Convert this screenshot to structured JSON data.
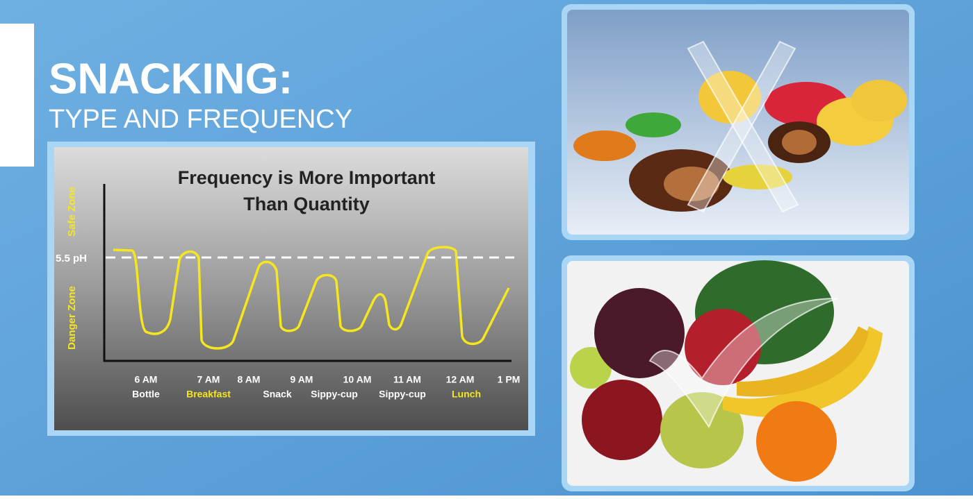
{
  "slide": {
    "title": "SNACKING:",
    "subtitle": "TYPE AND FREQUENCY"
  },
  "chart": {
    "title_lines": [
      "Frequency is More Important",
      "Than Quantity"
    ],
    "threshold_label": "5.5 pH",
    "zone_labels": [
      "Safe Zone",
      "Danger Zone"
    ],
    "x_labels": [
      "6 AM",
      "7 AM",
      "8 AM",
      "9 AM",
      "10 AM",
      "11 AM",
      "12 AM",
      "1 PM"
    ],
    "events": [
      {
        "label": "Bottle",
        "color": "#ffffff"
      },
      {
        "label": "Breakfast",
        "color": "#f5e61e"
      },
      {
        "label": "Snack",
        "color": "#ffffff"
      },
      {
        "label": "Sippy-cup",
        "color": "#ffffff"
      },
      {
        "label": "Sippy-cup",
        "color": "#ffffff"
      },
      {
        "label": "Lunch",
        "color": "#f5e61e"
      }
    ]
  }
}
